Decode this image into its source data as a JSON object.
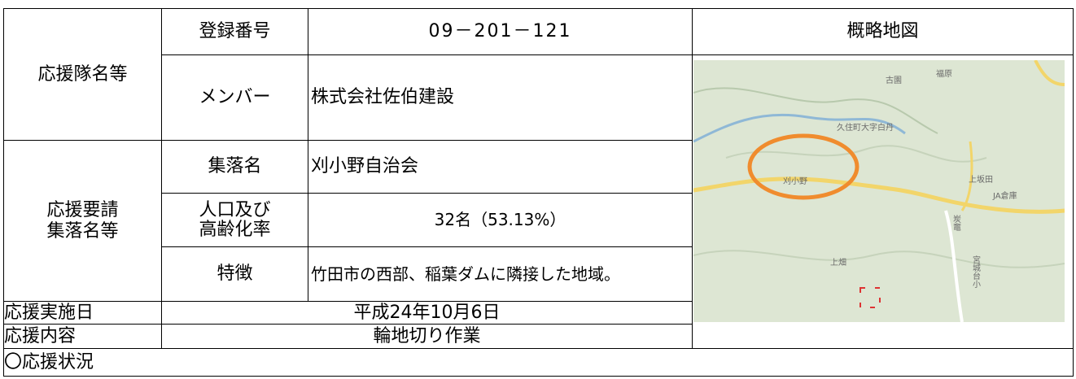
{
  "table": {
    "group1": "応援隊名等",
    "reg_label": "登録番号",
    "reg_value": "09－201－121",
    "map_header": "概略地図",
    "member_label": "メンバー",
    "member_value": "株式会社佐伯建設",
    "group2": "応援要請\n集落名等",
    "village_label": "集落名",
    "village_value": "刈小野自治会",
    "pop_label": "人口及び\n高齢化率",
    "pop_value": "32名（53.13%）",
    "feature_label": "特徴",
    "feature_value": "竹田市の西部、稲葉ダムに隣接した地域。",
    "date_label": "応援実施日",
    "date_value": "平成24年10月6日",
    "content_label": "応援内容",
    "content_value": "輪地切り作業",
    "status_label": "〇応援状況"
  },
  "map": {
    "labels": [
      "古園",
      "福原",
      "久住町大字白丹",
      "刈小野",
      "上坂田",
      "JA倉庫",
      "上畑",
      "炭竈",
      "宮城台小"
    ]
  }
}
